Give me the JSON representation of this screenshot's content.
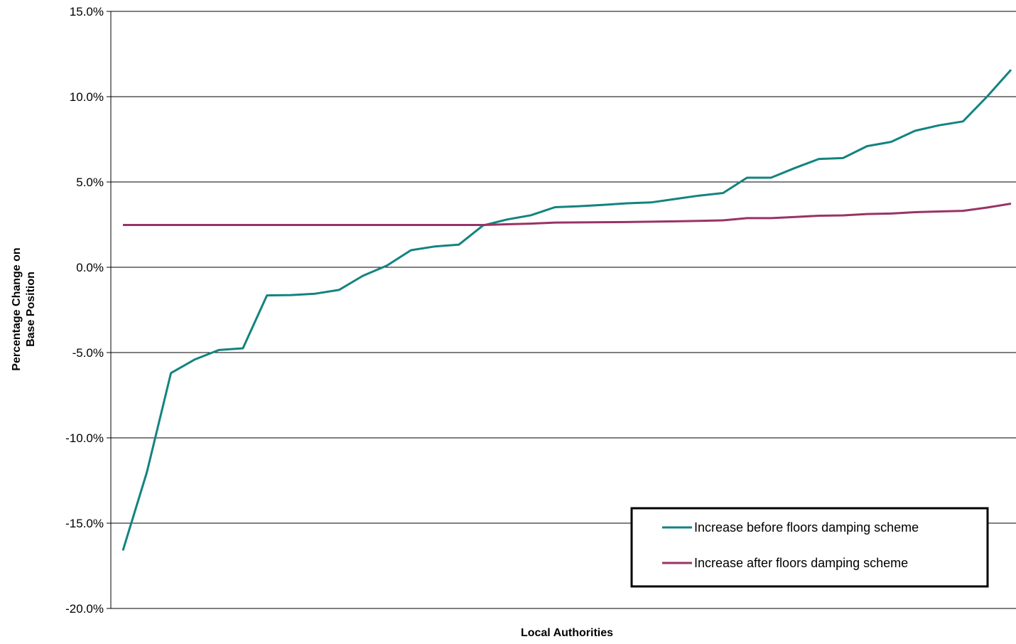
{
  "chart_data": {
    "type": "line",
    "title": "",
    "xlabel": "Local Authorities",
    "ylabel": "Percentage Change on Base Position",
    "ylabel_lines": [
      "Percentage Change on",
      "Base Position"
    ],
    "ylim": [
      -20,
      15
    ],
    "yticks": [
      -20,
      -15,
      -10,
      -5,
      0,
      5,
      10,
      15
    ],
    "ytick_labels": [
      "-20.0%",
      "-15.0%",
      "-10.0%",
      "-5.0%",
      "0.0%",
      "5.0%",
      "10.0%",
      "15.0%"
    ],
    "grid": "horizontal",
    "legend_position": "bottom-right",
    "x": [
      1,
      2,
      3,
      4,
      5,
      6,
      7,
      8,
      9,
      10,
      11,
      12,
      13,
      14,
      15,
      16,
      17,
      18,
      19,
      20,
      21,
      22,
      23,
      24,
      25,
      26,
      27,
      28,
      29,
      30,
      31,
      32,
      33,
      34,
      35,
      36,
      37,
      38
    ],
    "series": [
      {
        "name": "Increase before floors damping scheme",
        "color": "#138380",
        "values": [
          -16.6,
          -12.0,
          -6.2,
          -5.4,
          -4.85,
          -4.75,
          -1.65,
          -1.63,
          -1.55,
          -1.33,
          -0.5,
          0.1,
          1.0,
          1.22,
          1.33,
          2.45,
          2.8,
          3.05,
          3.52,
          3.58,
          3.66,
          3.75,
          3.8,
          4.0,
          4.2,
          4.35,
          5.25,
          5.25,
          5.82,
          6.35,
          6.4,
          7.1,
          7.35,
          8.0,
          8.32,
          8.55,
          10.0,
          11.58
        ]
      },
      {
        "name": "Increase after floors damping scheme",
        "color": "#993366",
        "values": [
          2.48,
          2.48,
          2.48,
          2.48,
          2.48,
          2.48,
          2.48,
          2.48,
          2.48,
          2.48,
          2.48,
          2.48,
          2.48,
          2.48,
          2.48,
          2.48,
          2.52,
          2.56,
          2.62,
          2.63,
          2.64,
          2.65,
          2.67,
          2.69,
          2.72,
          2.75,
          2.88,
          2.88,
          2.95,
          3.02,
          3.04,
          3.12,
          3.15,
          3.23,
          3.27,
          3.31,
          3.5,
          3.73
        ]
      }
    ]
  }
}
